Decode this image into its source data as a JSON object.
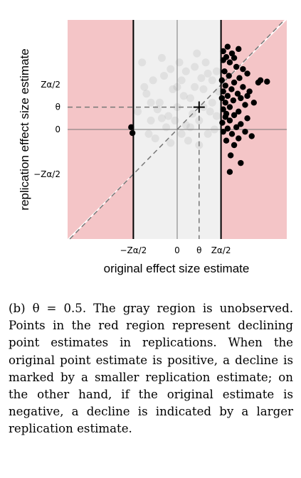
{
  "colors": {
    "red_region": "#f4c5c7",
    "gray_region": "#f0f0f0",
    "observed_point": "#000000",
    "unobserved_point": "#9a9a9a",
    "reference_line": "#777777"
  },
  "chart_data": {
    "type": "scatter",
    "xlabel": "original effect size estimate",
    "ylabel": "replication effect size estimate",
    "theta": 0.5,
    "z_alpha_half": 1.0,
    "xlim": [
      -2.5,
      2.5
    ],
    "ylim": [
      -2.45,
      2.45
    ],
    "x_ticks": [
      {
        "value": -1.0,
        "label": "−Zα/2"
      },
      {
        "value": 0.0,
        "label": "0"
      },
      {
        "value": 0.5,
        "label": "θ"
      },
      {
        "value": 1.0,
        "label": "Zα/2"
      }
    ],
    "y_ticks": [
      {
        "value": 1.0,
        "label": "Zα/2"
      },
      {
        "value": 0.5,
        "label": "θ"
      },
      {
        "value": 0.0,
        "label": "0"
      },
      {
        "value": -1.0,
        "label": "−Zα/2"
      }
    ],
    "marker": {
      "x": 0.5,
      "y": 0.5,
      "label": "+"
    },
    "observed_points": [
      [
        1.05,
        1.75
      ],
      [
        1.12,
        1.62
      ],
      [
        1.2,
        1.5
      ],
      [
        1.35,
        1.4
      ],
      [
        1.08,
        1.3
      ],
      [
        1.6,
        1.25
      ],
      [
        1.18,
        1.2
      ],
      [
        1.42,
        1.15
      ],
      [
        1.02,
        1.1
      ],
      [
        1.3,
        1.05
      ],
      [
        1.85,
        1.05
      ],
      [
        1.1,
        0.98
      ],
      [
        1.5,
        0.95
      ],
      [
        1.24,
        0.9
      ],
      [
        1.05,
        0.85
      ],
      [
        1.65,
        0.85
      ],
      [
        1.38,
        0.8
      ],
      [
        1.15,
        0.75
      ],
      [
        1.02,
        0.7
      ],
      [
        1.45,
        0.7
      ],
      [
        1.28,
        0.65
      ],
      [
        1.1,
        0.6
      ],
      [
        1.75,
        0.6
      ],
      [
        1.55,
        0.55
      ],
      [
        1.2,
        0.5
      ],
      [
        1.05,
        0.45
      ],
      [
        1.4,
        0.4
      ],
      [
        1.3,
        0.32
      ],
      [
        1.1,
        0.28
      ],
      [
        1.6,
        0.25
      ],
      [
        1.2,
        0.2
      ],
      [
        1.03,
        0.15
      ],
      [
        1.45,
        0.12
      ],
      [
        1.35,
        0.05
      ],
      [
        1.15,
        0.02
      ],
      [
        1.05,
        -0.05
      ],
      [
        1.55,
        -0.05
      ],
      [
        1.25,
        -0.1
      ],
      [
        1.4,
        -0.2
      ],
      [
        1.12,
        -0.25
      ],
      [
        1.3,
        -0.35
      ],
      [
        1.7,
        -0.15
      ],
      [
        1.05,
        1.55
      ],
      [
        1.25,
        1.7
      ],
      [
        1.15,
        1.85
      ],
      [
        1.4,
        1.8
      ],
      [
        1.3,
        1.6
      ],
      [
        1.9,
        1.1
      ],
      [
        2.05,
        1.07
      ],
      [
        1.5,
        1.35
      ],
      [
        1.22,
        -0.58
      ],
      [
        1.45,
        -0.75
      ],
      [
        1.2,
        -0.95
      ],
      [
        1.6,
        0.75
      ],
      [
        1.12,
        0.35
      ],
      [
        -1.02,
        -0.08
      ],
      [
        -1.05,
        0.05
      ]
    ],
    "unobserved_points": [
      [
        -0.9,
        0.4
      ],
      [
        -0.7,
        0.8
      ],
      [
        -0.6,
        0.2
      ],
      [
        -0.5,
        -0.2
      ],
      [
        -0.4,
        0.6
      ],
      [
        -0.3,
        1.2
      ],
      [
        -0.2,
        0.3
      ],
      [
        -0.1,
        0.9
      ],
      [
        0.0,
        0.5
      ],
      [
        0.1,
        1.1
      ],
      [
        0.2,
        0.1
      ],
      [
        0.3,
        0.7
      ],
      [
        0.4,
        1.4
      ],
      [
        0.5,
        0.2
      ],
      [
        0.6,
        0.9
      ],
      [
        0.7,
        -0.1
      ],
      [
        0.8,
        0.6
      ],
      [
        0.9,
        1.3
      ],
      [
        -0.8,
        1.5
      ],
      [
        -0.65,
        -0.1
      ],
      [
        -0.35,
        1.6
      ],
      [
        -0.15,
        -0.3
      ],
      [
        0.05,
        1.5
      ],
      [
        0.25,
        -0.25
      ],
      [
        0.45,
        1.7
      ],
      [
        0.65,
        1.5
      ],
      [
        0.85,
        0.0
      ],
      [
        -0.55,
        1.1
      ],
      [
        -0.25,
        0.05
      ],
      [
        0.15,
        0.75
      ],
      [
        0.35,
        0.35
      ],
      [
        0.55,
        1.15
      ],
      [
        0.75,
        0.4
      ],
      [
        0.95,
        0.85
      ],
      [
        -0.45,
        0.45
      ],
      [
        -0.05,
        0.2
      ],
      [
        0.2,
        1.3
      ],
      [
        0.4,
        0.95
      ],
      [
        0.6,
        0.5
      ],
      [
        0.8,
        1.1
      ],
      [
        -0.75,
        0.95
      ],
      [
        -0.15,
        1.35
      ],
      [
        0.1,
        -0.1
      ],
      [
        0.5,
        -0.35
      ],
      [
        0.7,
        1.25
      ],
      [
        0.9,
        0.3
      ],
      [
        -0.6,
        0.6
      ],
      [
        0.3,
        0.05
      ],
      [
        0.0,
        0.95
      ],
      [
        -0.35,
        0.25
      ]
    ]
  },
  "caption": {
    "label": "(b)",
    "math": "θ = 0.5.",
    "text": "The gray region is unobserved. Points in the red region represent declining point estimates in replications. When the original point estimate is positive, a decline is marked by a smaller replication estimate; on the other hand, if the original estimate is negative, a decline is indicated by a larger replication estimate."
  }
}
